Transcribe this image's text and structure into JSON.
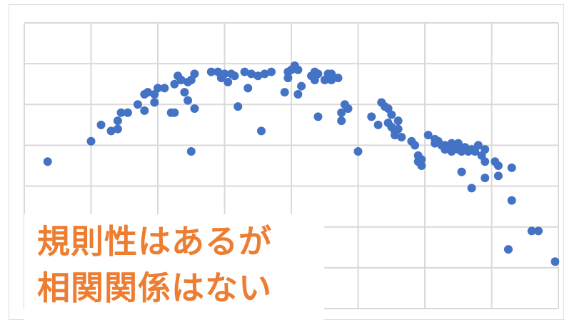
{
  "caption": {
    "line1": "規則性はあるが",
    "line2": "相関関係はない",
    "color": "#ed7d31"
  },
  "chart_data": {
    "type": "scatter",
    "title": "",
    "xlabel": "",
    "ylabel": "",
    "xlim": [
      0,
      8
    ],
    "ylim": [
      0,
      7
    ],
    "grid": true,
    "gridColor": "#d9d9d9",
    "pointColor": "#4472c4",
    "tick_labels_visible": false,
    "series": [
      {
        "points": [
          [
            0.35,
            3.6
          ],
          [
            1.0,
            4.1
          ],
          [
            1.15,
            4.5
          ],
          [
            1.3,
            4.35
          ],
          [
            1.4,
            4.4
          ],
          [
            1.4,
            4.6
          ],
          [
            1.45,
            4.8
          ],
          [
            1.55,
            4.8
          ],
          [
            1.7,
            5.0
          ],
          [
            1.8,
            4.85
          ],
          [
            1.8,
            5.25
          ],
          [
            1.85,
            5.3
          ],
          [
            1.95,
            5.05
          ],
          [
            1.95,
            5.25
          ],
          [
            2.0,
            5.4
          ],
          [
            2.1,
            5.4
          ],
          [
            2.2,
            4.8
          ],
          [
            2.25,
            4.8
          ],
          [
            2.25,
            5.5
          ],
          [
            2.3,
            5.7
          ],
          [
            2.35,
            5.6
          ],
          [
            2.4,
            5.3
          ],
          [
            2.45,
            5.55
          ],
          [
            2.45,
            5.1
          ],
          [
            2.5,
            5.6
          ],
          [
            2.5,
            3.85
          ],
          [
            2.55,
            5.75
          ],
          [
            2.55,
            4.9
          ],
          [
            2.8,
            5.8
          ],
          [
            2.9,
            5.8
          ],
          [
            2.95,
            5.65
          ],
          [
            3.0,
            5.75
          ],
          [
            3.05,
            5.55
          ],
          [
            3.1,
            5.75
          ],
          [
            3.15,
            5.7
          ],
          [
            3.2,
            4.95
          ],
          [
            3.3,
            5.8
          ],
          [
            3.35,
            5.4
          ],
          [
            3.4,
            5.75
          ],
          [
            3.5,
            5.7
          ],
          [
            3.55,
            4.35
          ],
          [
            3.6,
            5.75
          ],
          [
            3.7,
            5.8
          ],
          [
            3.9,
            5.3
          ],
          [
            3.95,
            5.65
          ],
          [
            3.95,
            5.8
          ],
          [
            4.0,
            5.85
          ],
          [
            4.05,
            5.9
          ],
          [
            4.05,
            5.95
          ],
          [
            4.1,
            5.85
          ],
          [
            4.1,
            5.25
          ],
          [
            4.15,
            5.45
          ],
          [
            4.3,
            5.7
          ],
          [
            4.35,
            5.6
          ],
          [
            4.35,
            5.8
          ],
          [
            4.4,
            5.75
          ],
          [
            4.4,
            4.7
          ],
          [
            4.5,
            5.6
          ],
          [
            4.55,
            5.75
          ],
          [
            4.6,
            5.6
          ],
          [
            4.6,
            5.75
          ],
          [
            4.7,
            5.65
          ],
          [
            4.75,
            4.8
          ],
          [
            4.75,
            4.6
          ],
          [
            4.8,
            5.0
          ],
          [
            4.85,
            4.9
          ],
          [
            5.0,
            3.85
          ],
          [
            5.2,
            4.7
          ],
          [
            5.3,
            4.5
          ],
          [
            5.35,
            5.05
          ],
          [
            5.4,
            4.95
          ],
          [
            5.45,
            4.9
          ],
          [
            5.45,
            4.55
          ],
          [
            5.5,
            4.45
          ],
          [
            5.5,
            4.75
          ],
          [
            5.55,
            4.35
          ],
          [
            5.55,
            4.25
          ],
          [
            5.6,
            4.6
          ],
          [
            5.6,
            4.4
          ],
          [
            5.65,
            4.2
          ],
          [
            5.8,
            4.1
          ],
          [
            5.85,
            4.0
          ],
          [
            5.9,
            3.75
          ],
          [
            5.9,
            3.6
          ],
          [
            5.95,
            3.5
          ],
          [
            5.95,
            3.65
          ],
          [
            6.05,
            4.25
          ],
          [
            6.15,
            4.15
          ],
          [
            6.15,
            4.05
          ],
          [
            6.2,
            4.1
          ],
          [
            6.25,
            4.0
          ],
          [
            6.3,
            3.9
          ],
          [
            6.3,
            4.0
          ],
          [
            6.35,
            3.95
          ],
          [
            6.4,
            3.85
          ],
          [
            6.4,
            4.05
          ],
          [
            6.45,
            3.95
          ],
          [
            6.5,
            3.9
          ],
          [
            6.5,
            4.05
          ],
          [
            6.55,
            3.85
          ],
          [
            6.6,
            3.95
          ],
          [
            6.65,
            3.85
          ],
          [
            6.7,
            3.9
          ],
          [
            6.75,
            3.85
          ],
          [
            6.8,
            4.0
          ],
          [
            6.85,
            3.75
          ],
          [
            6.9,
            3.6
          ],
          [
            6.9,
            3.9
          ],
          [
            6.55,
            3.35
          ],
          [
            6.7,
            2.95
          ],
          [
            6.9,
            3.2
          ],
          [
            7.05,
            3.6
          ],
          [
            7.1,
            3.5
          ],
          [
            7.1,
            3.25
          ],
          [
            7.3,
            3.45
          ],
          [
            7.3,
            2.65
          ],
          [
            7.25,
            1.45
          ],
          [
            7.6,
            1.9
          ],
          [
            7.7,
            1.9
          ],
          [
            7.95,
            1.15
          ]
        ]
      }
    ]
  }
}
